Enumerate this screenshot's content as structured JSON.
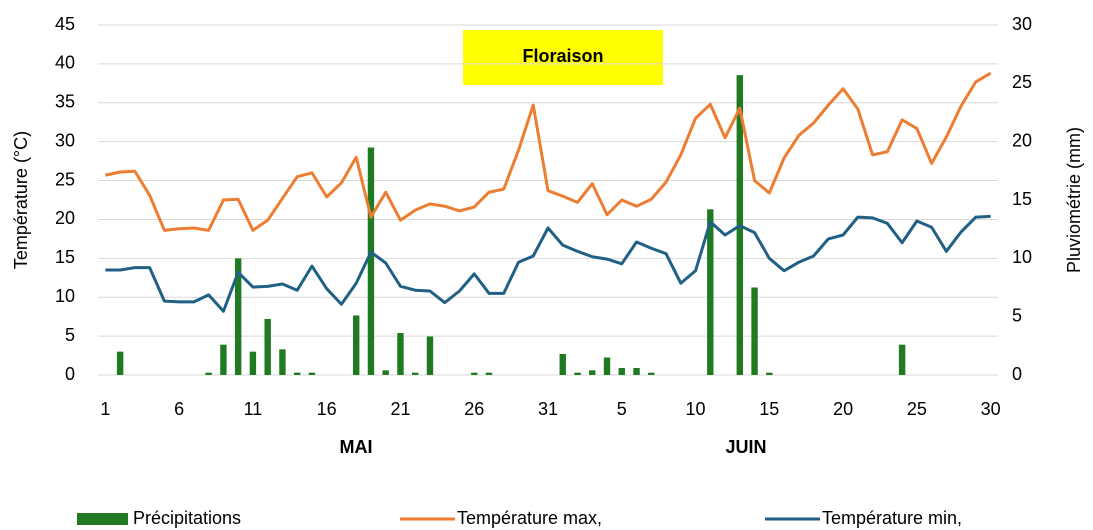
{
  "chart_data": {
    "type": "combo",
    "annotations": [
      "Floraison"
    ],
    "month_labels": [
      "MAI",
      "JUIN"
    ],
    "y_label": "Température (°C)",
    "y2_label": "Pluviométrie (mm)",
    "categories": [
      "1",
      null,
      null,
      null,
      null,
      "6",
      null,
      null,
      null,
      null,
      "11",
      null,
      null,
      null,
      null,
      "16",
      null,
      null,
      null,
      null,
      "21",
      null,
      null,
      null,
      null,
      "26",
      null,
      null,
      null,
      null,
      "31",
      null,
      null,
      null,
      null,
      "5",
      null,
      null,
      null,
      null,
      "10",
      null,
      null,
      null,
      null,
      "15",
      null,
      null,
      null,
      null,
      "20",
      null,
      null,
      null,
      null,
      "25",
      null,
      null,
      null,
      null,
      "30"
    ],
    "ylim": [
      0,
      45
    ],
    "yticks": [
      0,
      5,
      10,
      15,
      20,
      25,
      30,
      35,
      40,
      45
    ],
    "y2lim": [
      0,
      30
    ],
    "y2ticks": [
      0,
      5,
      10,
      15,
      20,
      25,
      30
    ],
    "grid": true,
    "legend": "bottom",
    "series": [
      {
        "name": "Précipitations",
        "type": "bar",
        "axis": "y2",
        "color": "#217a21",
        "values": [
          0,
          2.0,
          0,
          0,
          0,
          0,
          0,
          0.2,
          2.6,
          10.0,
          2.0,
          4.8,
          2.2,
          0.2,
          0.2,
          0,
          0,
          5.1,
          19.5,
          0.4,
          3.6,
          0.2,
          3.3,
          0,
          0,
          0.2,
          0.2,
          0,
          0,
          0,
          0,
          1.8,
          0.2,
          0.4,
          1.5,
          0.6,
          0.6,
          0.2,
          0,
          0,
          0,
          14.2,
          0,
          25.7,
          7.5,
          0.2,
          0,
          0,
          0,
          0,
          0,
          0,
          0,
          0,
          2.6,
          0,
          0,
          0,
          0,
          0,
          0
        ]
      },
      {
        "name": "Température max,",
        "type": "line",
        "axis": "y",
        "color": "#ed7d31",
        "values": [
          25.7,
          26.1,
          26.2,
          23.1,
          18.6,
          18.8,
          18.9,
          18.6,
          22.5,
          22.6,
          18.6,
          19.9,
          22.7,
          25.5,
          26.0,
          22.9,
          24.7,
          28.0,
          20.3,
          23.5,
          19.9,
          21.2,
          22.0,
          21.7,
          21.1,
          21.6,
          23.5,
          23.9,
          28.9,
          34.7,
          23.7,
          23.0,
          22.2,
          24.6,
          20.6,
          22.5,
          21.7,
          22.6,
          24.8,
          28.3,
          33.0,
          34.8,
          30.5,
          34.3,
          25.0,
          23.4,
          27.9,
          30.8,
          32.4,
          34.7,
          36.8,
          34.2,
          28.3,
          28.7,
          32.8,
          31.7,
          27.2,
          30.6,
          34.6,
          37.7,
          38.8
        ]
      },
      {
        "name": "Température min,",
        "type": "line",
        "axis": "y",
        "color": "#1f6084",
        "values": [
          13.5,
          13.5,
          13.8,
          13.8,
          9.5,
          9.4,
          9.4,
          10.3,
          8.2,
          13.2,
          11.3,
          11.4,
          11.7,
          10.9,
          14.0,
          11.1,
          9.1,
          11.8,
          15.8,
          14.4,
          11.4,
          10.9,
          10.8,
          9.3,
          10.8,
          13.0,
          10.5,
          10.5,
          14.5,
          15.3,
          18.9,
          16.7,
          15.9,
          15.2,
          14.9,
          14.3,
          17.1,
          16.3,
          15.6,
          11.8,
          13.4,
          19.7,
          18.0,
          19.2,
          18.3,
          15.0,
          13.4,
          14.5,
          15.3,
          17.5,
          18.0,
          20.3,
          20.2,
          19.5,
          17.0,
          19.8,
          19.0,
          15.9,
          18.4,
          20.3,
          20.4
        ]
      }
    ]
  }
}
